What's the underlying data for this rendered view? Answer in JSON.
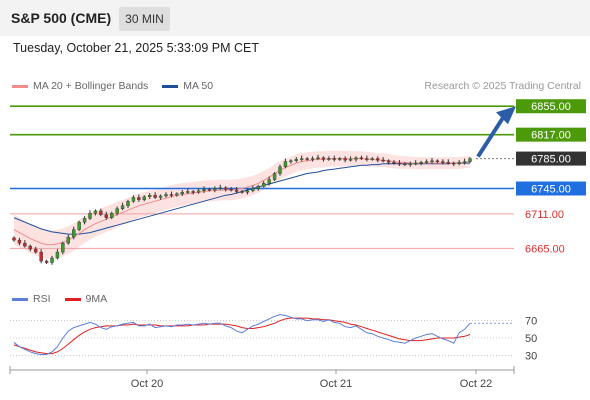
{
  "header": {
    "symbol": "S&P 500 (CME)",
    "timeframe": "30 MIN",
    "timestamp": "Tuesday, October 21, 2025 5:33:09 PM CET"
  },
  "legend": {
    "ma20_label": "MA 20 + Bollinger Bands",
    "ma20_color": "#f08c8c",
    "ma50_label": "MA 50",
    "ma50_color": "#1f4e99",
    "credit": "Research © 2025 Trading Central"
  },
  "rsi_legend": {
    "rsi_label": "RSI",
    "rsi_color": "#5b7fd8",
    "ma_label": "9MA",
    "ma_color": "#e02020"
  },
  "chart_data": [
    {
      "type": "candlestick",
      "ylim": [
        6620,
        6870
      ],
      "x_ticks": [
        "Oct 20",
        "Oct 21",
        "Oct 22"
      ],
      "levels": [
        {
          "value": 6855.0,
          "label": "6855.00",
          "kind": "resistance",
          "color": "#4c9a0a"
        },
        {
          "value": 6817.0,
          "label": "6817.00",
          "kind": "resistance",
          "color": "#4c9a0a"
        },
        {
          "value": 6785.0,
          "label": "6785.00",
          "kind": "current",
          "color": "#333333"
        },
        {
          "value": 6745.0,
          "label": "6745.00",
          "kind": "pivot",
          "color": "#1f6fe0"
        },
        {
          "value": 6711.0,
          "label": "6711.00",
          "kind": "support",
          "color": "#d93030"
        },
        {
          "value": 6665.0,
          "label": "6665.00",
          "kind": "support",
          "color": "#d93030"
        }
      ],
      "closes": [
        6676,
        6672,
        6668,
        6664,
        6660,
        6648,
        6646,
        6652,
        6660,
        6672,
        6680,
        6690,
        6700,
        6705,
        6712,
        6715,
        6710,
        6706,
        6712,
        6718,
        6722,
        6728,
        6733,
        6730,
        6734,
        6736,
        6733,
        6735,
        6737,
        6736,
        6738,
        6740,
        6741,
        6740,
        6742,
        6744,
        6743,
        6745,
        6746,
        6744,
        6743,
        6741,
        6740,
        6742,
        6745,
        6748,
        6752,
        6757,
        6765,
        6774,
        6781,
        6782,
        6784,
        6785,
        6784,
        6785,
        6786,
        6784,
        6785,
        6784,
        6785,
        6783,
        6784,
        6786,
        6785,
        6784,
        6785,
        6783,
        6782,
        6780,
        6779,
        6778,
        6777,
        6778,
        6779,
        6780,
        6781,
        6782,
        6781,
        6780,
        6779,
        6778,
        6780,
        6781,
        6785
      ],
      "ma20": [
        6690,
        6686,
        6682,
        6678,
        6675,
        6672,
        6670,
        6670,
        6671,
        6673,
        6676,
        6680,
        6685,
        6690,
        6694,
        6698,
        6701,
        6704,
        6707,
        6710,
        6713,
        6716,
        6719,
        6722,
        6724,
        6726,
        6728,
        6730,
        6732,
        6734,
        6736,
        6737,
        6738,
        6739,
        6740,
        6741,
        6742,
        6742,
        6743,
        6743,
        6743,
        6744,
        6745,
        6747,
        6749,
        6752,
        6756,
        6760,
        6765,
        6769,
        6773,
        6776,
        6779,
        6781,
        6782,
        6783,
        6784,
        6784,
        6785,
        6785,
        6785,
        6785,
        6785,
        6785,
        6785,
        6784,
        6784,
        6783,
        6783,
        6782,
        6781,
        6780,
        6780,
        6779,
        6779,
        6779,
        6779,
        6779,
        6779,
        6779,
        6779,
        6779,
        6779,
        6780,
        6781
      ],
      "ma50": [
        6706,
        6703,
        6700,
        6697,
        6694,
        6691,
        6689,
        6687,
        6686,
        6685,
        6684,
        6684,
        6684,
        6685,
        6686,
        6688,
        6690,
        6692,
        6694,
        6696,
        6698,
        6700,
        6702,
        6704,
        6706,
        6708,
        6710,
        6712,
        6714,
        6716,
        6718,
        6720,
        6722,
        6724,
        6726,
        6728,
        6730,
        6732,
        6734,
        6736,
        6737,
        6739,
        6741,
        6743,
        6745,
        6747,
        6749,
        6751,
        6753,
        6755,
        6757,
        6759,
        6761,
        6763,
        6765,
        6766,
        6767,
        6769,
        6770,
        6771,
        6772,
        6773,
        6774,
        6775,
        6776,
        6776,
        6777,
        6777,
        6778,
        6778,
        6778,
        6778,
        6778,
        6778,
        6778,
        6778,
        6778,
        6778,
        6778,
        6778,
        6778,
        6779,
        6779,
        6779,
        6779
      ]
    },
    {
      "type": "line",
      "title": "RSI",
      "ylim": [
        20,
        80
      ],
      "y_ticks": [
        70,
        50,
        30
      ],
      "rsi": [
        45,
        40,
        37,
        34,
        32,
        31,
        31,
        34,
        40,
        50,
        58,
        62,
        64,
        66,
        68,
        66,
        62,
        60,
        63,
        64,
        66,
        67,
        68,
        64,
        64,
        66,
        62,
        63,
        64,
        63,
        65,
        65,
        66,
        65,
        66,
        67,
        66,
        67,
        67,
        64,
        62,
        58,
        56,
        60,
        64,
        66,
        69,
        72,
        75,
        77,
        76,
        74,
        72,
        72,
        70,
        71,
        71,
        69,
        71,
        68,
        67,
        63,
        62,
        64,
        60,
        56,
        55,
        52,
        50,
        48,
        46,
        45,
        44,
        47,
        50,
        52,
        54,
        55,
        52,
        49,
        47,
        44,
        56,
        60,
        67
      ],
      "rsi_ma": [
        42,
        40,
        38,
        36,
        34,
        33,
        32,
        32,
        34,
        38,
        43,
        48,
        53,
        57,
        60,
        62,
        63,
        64,
        64,
        64,
        65,
        65,
        66,
        65,
        65,
        65,
        65,
        64,
        64,
        64,
        64,
        64,
        64,
        65,
        65,
        65,
        66,
        66,
        66,
        66,
        65,
        64,
        62,
        61,
        61,
        62,
        63,
        65,
        67,
        70,
        72,
        73,
        73,
        73,
        73,
        72,
        72,
        71,
        71,
        70,
        69,
        68,
        66,
        65,
        63,
        61,
        59,
        57,
        55,
        53,
        51,
        49,
        48,
        47,
        47,
        47,
        48,
        49,
        50,
        50,
        50,
        50,
        51,
        52,
        54
      ]
    }
  ]
}
